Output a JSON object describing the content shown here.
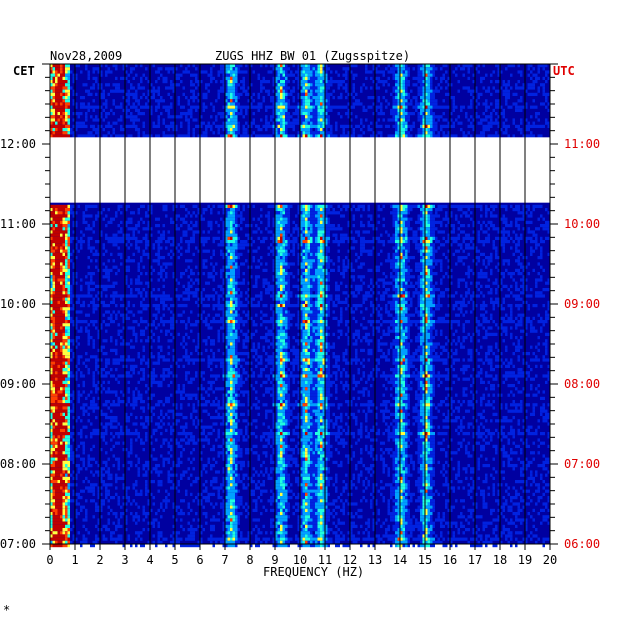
{
  "chart_data": {
    "type": "heatmap",
    "title": "ZUGS HHZ BW 01 (Zugsspitze)",
    "date": "Nov28,2009",
    "xlabel": "FREQUENCY (HZ)",
    "left_axis_label": "CET",
    "right_axis_label": "UTC",
    "xlim": [
      0,
      20
    ],
    "x_ticks": [
      0,
      1,
      2,
      3,
      4,
      5,
      6,
      7,
      8,
      9,
      10,
      11,
      12,
      13,
      14,
      15,
      16,
      17,
      18,
      19,
      20
    ],
    "ylim_cet": [
      "07:00",
      "13:00"
    ],
    "cet_ticks": [
      "12:00",
      "11:00",
      "10:00",
      "09:00",
      "08:00",
      "07:00"
    ],
    "utc_ticks": [
      "11:00",
      "10:00",
      "09:00",
      "08:00",
      "07:00",
      "06:00"
    ],
    "data_gap_cet": [
      "11:16",
      "12:05"
    ],
    "grid": true,
    "strong_bands_hz": [
      0.3,
      7.2,
      9.2,
      10.2,
      10.8,
      14.0,
      15.0
    ],
    "colorscale": [
      "#0000a0",
      "#0022e0",
      "#00a0ff",
      "#20ffe0",
      "#ffff40",
      "#ff4000",
      "#c00000"
    ],
    "note_mark": "*"
  }
}
